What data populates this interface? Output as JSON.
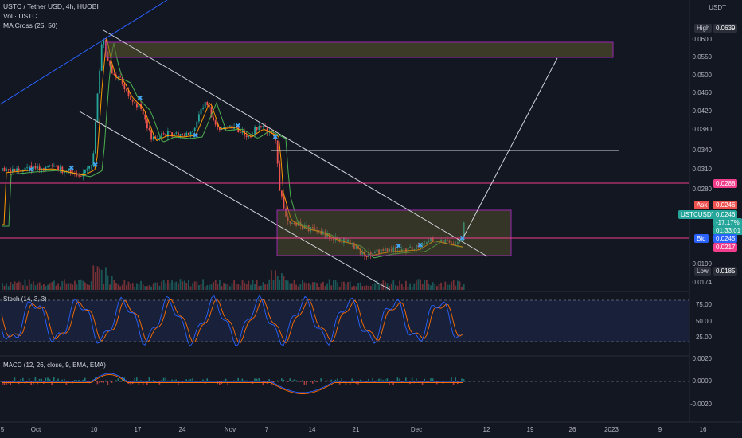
{
  "header": {
    "symbol_line": "USTC / Tether USD, 4h, HUOBI",
    "volume_line": "Vol · USTC",
    "ma_line": "MA Cross (25, 50)",
    "currency": "USDT"
  },
  "price_axis": {
    "ticks": [
      "0.0600",
      "0.0550",
      "0.0500",
      "0.0460",
      "0.0420",
      "0.0380",
      "0.0340",
      "0.0310",
      "0.0280",
      "0.0190",
      "0.0174"
    ]
  },
  "price_tags": {
    "high_label": "High",
    "high_value": "0.0639",
    "pink_level": "0.0288",
    "ask_label": "Ask",
    "ask_value": "0.0246",
    "symbol_label": "USTCUSDT",
    "last_value": "0.0246",
    "change": "-17.17%",
    "countdown": "01:33:01",
    "bid_label": "Bid",
    "bid_value": "0.0245",
    "support_level": "0.0217",
    "low_label": "Low",
    "low_value": "0.0185"
  },
  "stoch": {
    "label": "Stoch (14, 3, 3)",
    "ticks": [
      "75.00",
      "50.00",
      "25.00"
    ]
  },
  "macd": {
    "label": "MACD (12, 26, close, 9, EMA, EMA)",
    "ticks": [
      "0.0020",
      "0.0000",
      "-0.0020"
    ]
  },
  "time_axis": {
    "labels": [
      "5",
      "Oct",
      "10",
      "17",
      "24",
      "Nov",
      "7",
      "14",
      "21",
      "Dec",
      "12",
      "19",
      "26",
      "2023",
      "9",
      "16"
    ]
  },
  "colors": {
    "background": "#131722",
    "up": "#26a69a",
    "down": "#ef5350",
    "ma_fast": "#ff9800",
    "ma_slow": "#4caf50",
    "zone_border": "#9c27b0",
    "pink_line": "#f23d8c",
    "stoch_k": "#2962ff",
    "stoch_d": "#ff6d00"
  }
}
